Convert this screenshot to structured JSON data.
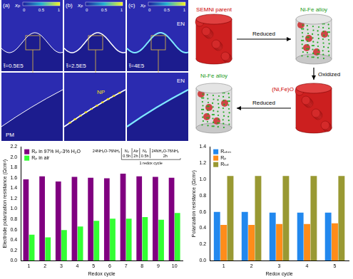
{
  "panels": [
    {
      "label": "(a)",
      "time": "t̃=0.5E5",
      "colorbar": {
        "label": "xₚ",
        "ticks": [
          0,
          0.5,
          1
        ]
      },
      "zoom": {
        "lower": "PM"
      }
    },
    {
      "label": "(b)",
      "time": "t̃=2.5E5",
      "colorbar": {
        "label": "xₚ",
        "ticks": [
          0,
          0.5,
          1
        ]
      },
      "zoom": {
        "interface": "NP"
      }
    },
    {
      "label": "(c)",
      "time": "t̃=4E5",
      "colorbar": {
        "label": "xₚ",
        "ticks": [
          0,
          0.5,
          1
        ]
      },
      "top_label": "EN",
      "zoom": {
        "upper": "EN"
      }
    }
  ],
  "diagram": {
    "nodes": [
      {
        "label": "SEMNi parent"
      },
      {
        "label": "Ni-Fe alloy"
      },
      {
        "label": "(Ni,Fe)O"
      },
      {
        "label": "Ni-Fe alloy"
      }
    ],
    "edges": [
      {
        "from": 0,
        "to": 1,
        "label": "Reduced"
      },
      {
        "from": 1,
        "to": 2,
        "label": "Oxidized"
      },
      {
        "from": 2,
        "to": 3,
        "label": "Reduced"
      }
    ]
  },
  "chart_data": [
    {
      "type": "bar",
      "xlabel": "Redox cycle",
      "ylabel": "Electrode polarization resistance (Ωcm²)",
      "categories": [
        1,
        2,
        3,
        4,
        5,
        6,
        7,
        8,
        9,
        10
      ],
      "series": [
        {
          "name": "Rₚ in 97% H₂-3% H₂O",
          "color": "#800080",
          "values": [
            1.57,
            1.63,
            1.53,
            1.62,
            1.6,
            1.59,
            1.68,
            1.63,
            1.62,
            1.6
          ]
        },
        {
          "name": "Rₚ in air",
          "color": "#33ff33",
          "values": [
            0.5,
            0.45,
            0.59,
            0.66,
            0.77,
            0.81,
            0.81,
            0.84,
            0.79,
            0.92
          ]
        }
      ],
      "ylim": [
        0,
        2.2
      ],
      "yticks": [
        {
          "value": 0,
          "label": "0.0"
        },
        0.2,
        0.4,
        0.6,
        0.8,
        {
          "value": 1,
          "label": "1.0"
        },
        1.2,
        1.4,
        1.6,
        1.8,
        {
          "value": 2,
          "label": "2.0"
        },
        2.2
      ],
      "grid": false,
      "legend": "upper left",
      "annotations": [
        {
          "steps": [
            {
              "gas": "24NH₂O-76NH₂"
            },
            {
              "gas": "N₂",
              "time": "0.5h"
            },
            {
              "gas": "Air",
              "time": "2h"
            },
            {
              "gas": "N₂",
              "time": "0.5h"
            },
            {
              "gas": "24NH₂O-76NH₂",
              "time": "2h"
            }
          ],
          "caption": "1 redox cycle"
        }
      ]
    },
    {
      "type": "bar",
      "xlabel": "Redox cycle",
      "ylabel": "Polarization resistance (Ωcm²)",
      "categories": [
        1,
        2,
        3,
        4,
        5
      ],
      "series": [
        {
          "name": "Rₒₕₘ",
          "color": "#2288ee",
          "values": [
            0.6,
            0.6,
            0.59,
            0.59,
            0.59
          ]
        },
        {
          "name": "Rₚ",
          "color": "#ff8c1a",
          "values": [
            0.44,
            0.44,
            0.45,
            0.45,
            0.46
          ]
        },
        {
          "name": "Rₜₒₜ",
          "color": "#999933",
          "values": [
            1.04,
            1.04,
            1.04,
            1.04,
            1.04
          ]
        }
      ],
      "ylim": [
        0,
        1.4
      ],
      "yticks": [
        {
          "value": 0,
          "label": "0.0"
        },
        0.2,
        0.4,
        0.6,
        0.8,
        {
          "value": 1,
          "label": "1.0"
        },
        1.2,
        1.4
      ],
      "grid": false,
      "legend": "upper left"
    }
  ]
}
